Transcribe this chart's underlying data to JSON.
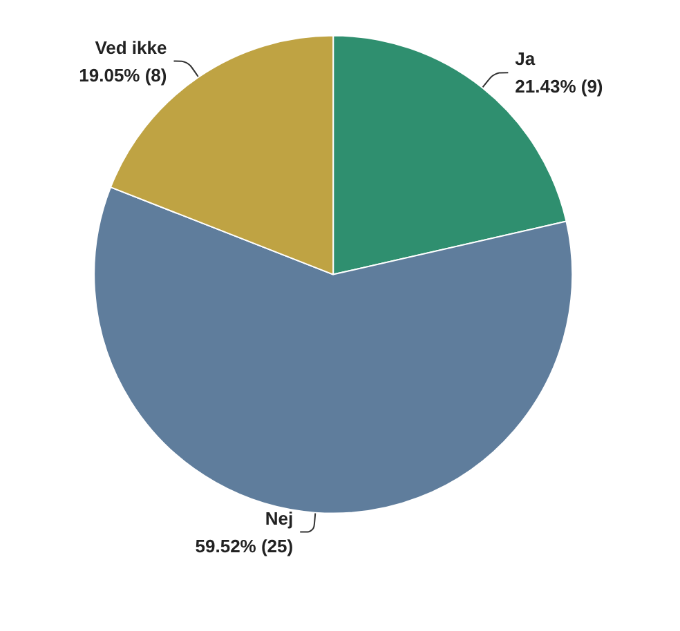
{
  "chart_data": {
    "type": "pie",
    "categories": [
      "Ja",
      "Nej",
      "Ved ikke"
    ],
    "values": [
      9,
      25,
      8
    ],
    "colors": [
      "#2f8f6f",
      "#5f7d9c",
      "#bfa343"
    ],
    "value_labels": [
      "21.43% (9)",
      "59.52% (25)",
      "19.05% (8)"
    ],
    "legend": false
  }
}
